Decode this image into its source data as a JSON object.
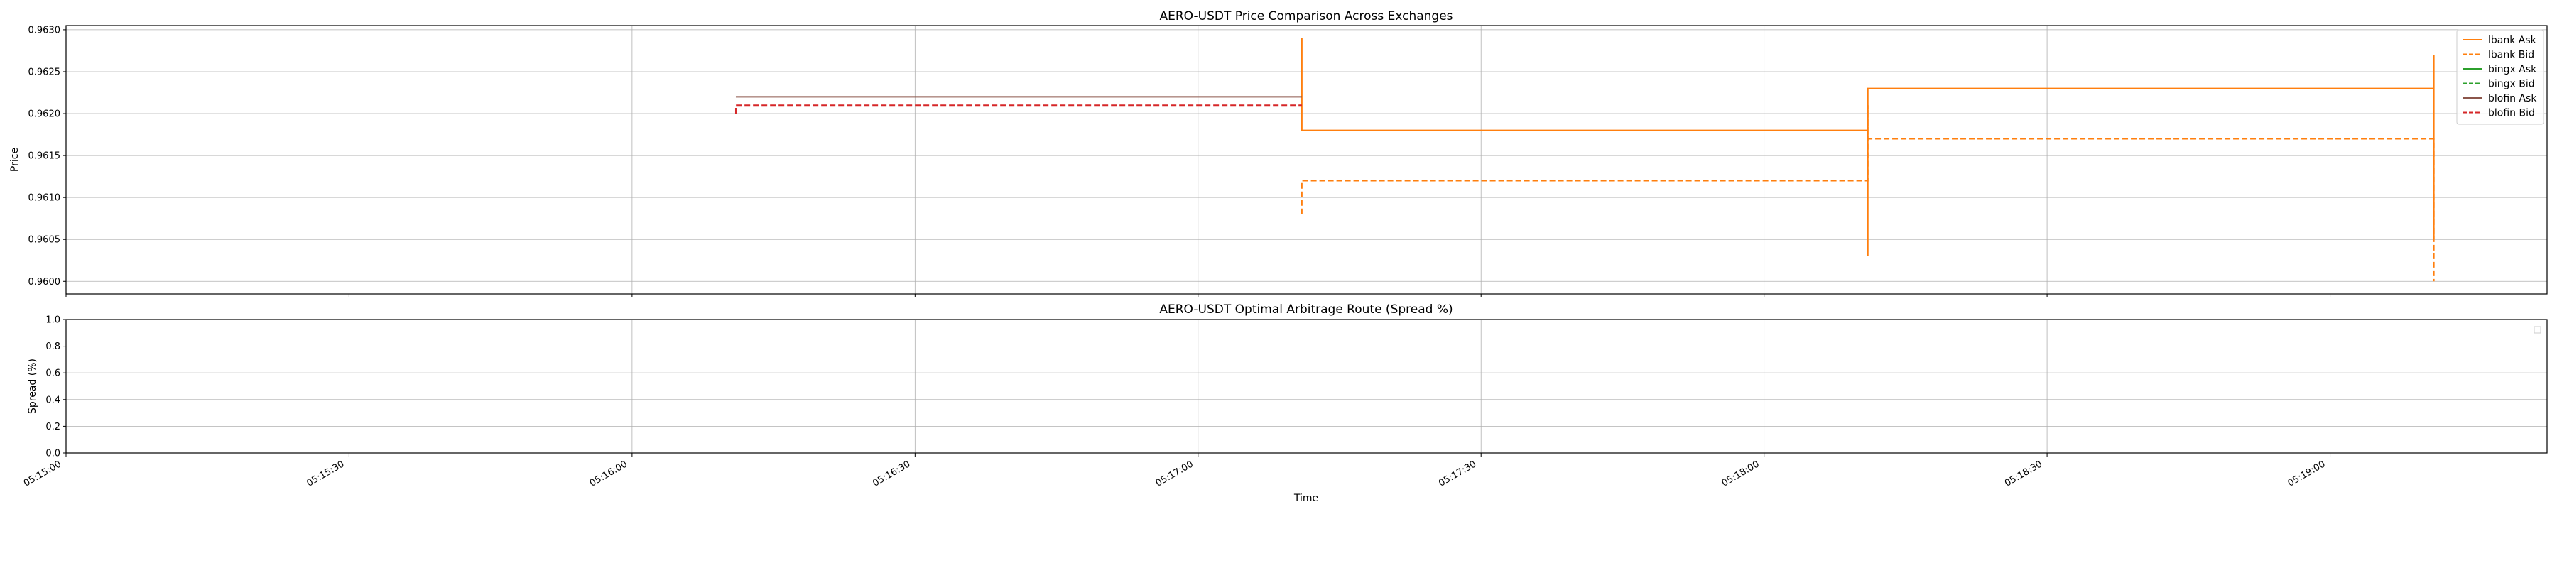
{
  "chart_data": [
    {
      "type": "line",
      "title": "AERO-USDT Price Comparison Across Exchanges",
      "xlabel": "",
      "ylabel": "Price",
      "ylim": [
        0.95985,
        0.96305
      ],
      "xlim": [
        "05:15:00",
        "05:19:23"
      ],
      "grid": true,
      "legend_position": "top-right",
      "x_ticks": [
        "05:15:00",
        "05:15:30",
        "05:16:00",
        "05:16:30",
        "05:17:00",
        "05:17:30",
        "05:18:00",
        "05:18:30",
        "05:19:00"
      ],
      "y_ticks": [
        "0.9600",
        "0.9605",
        "0.9610",
        "0.9615",
        "0.9620",
        "0.9625",
        "0.9630"
      ],
      "series": [
        {
          "name": "lbank Ask",
          "color": "#ff7f0e",
          "dash": "solid",
          "points": [
            [
              "05:17:11",
              0.9629
            ],
            [
              "05:17:11",
              0.9618
            ],
            [
              "05:18:11",
              0.9618
            ],
            [
              "05:18:11",
              0.9603
            ],
            [
              "05:18:11",
              0.9623
            ],
            [
              "05:19:11",
              0.9623
            ],
            [
              "05:19:11",
              0.9627
            ],
            [
              "05:19:11",
              0.9605
            ]
          ]
        },
        {
          "name": "lbank Bid",
          "color": "#ff7f0e",
          "dash": "dashed",
          "points": [
            [
              "05:17:11",
              0.9608
            ],
            [
              "05:17:11",
              0.9612
            ],
            [
              "05:18:11",
              0.9612
            ],
            [
              "05:18:11",
              0.9621
            ],
            [
              "05:18:11",
              0.9617
            ],
            [
              "05:19:11",
              0.9617
            ],
            [
              "05:19:11",
              0.96
            ]
          ]
        },
        {
          "name": "bingx Ask",
          "color": "#2ca02c",
          "dash": "solid",
          "points": []
        },
        {
          "name": "bingx Bid",
          "color": "#2ca02c",
          "dash": "dashed",
          "points": []
        },
        {
          "name": "blofin Ask",
          "color": "#8c564b",
          "dash": "solid",
          "points": [
            [
              "05:16:11",
              0.9622
            ],
            [
              "05:17:11",
              0.9622
            ]
          ]
        },
        {
          "name": "blofin Bid",
          "color": "#d62728",
          "dash": "dashed",
          "points": [
            [
              "05:16:11",
              0.962
            ],
            [
              "05:16:11",
              0.9621
            ],
            [
              "05:17:11",
              0.9621
            ]
          ]
        }
      ]
    },
    {
      "type": "line",
      "title": "AERO-USDT Optimal Arbitrage Route (Spread %)",
      "xlabel": "Time",
      "ylabel": "Spread (%)",
      "ylim": [
        0.0,
        1.0
      ],
      "xlim": [
        "05:15:00",
        "05:19:23"
      ],
      "grid": true,
      "legend_position": "top-right",
      "x_ticks": [
        "05:15:00",
        "05:15:30",
        "05:16:00",
        "05:16:30",
        "05:17:00",
        "05:17:30",
        "05:18:00",
        "05:18:30",
        "05:19:00"
      ],
      "y_ticks": [
        "0.0",
        "0.2",
        "0.4",
        "0.6",
        "0.8",
        "1.0"
      ],
      "series": []
    }
  ]
}
